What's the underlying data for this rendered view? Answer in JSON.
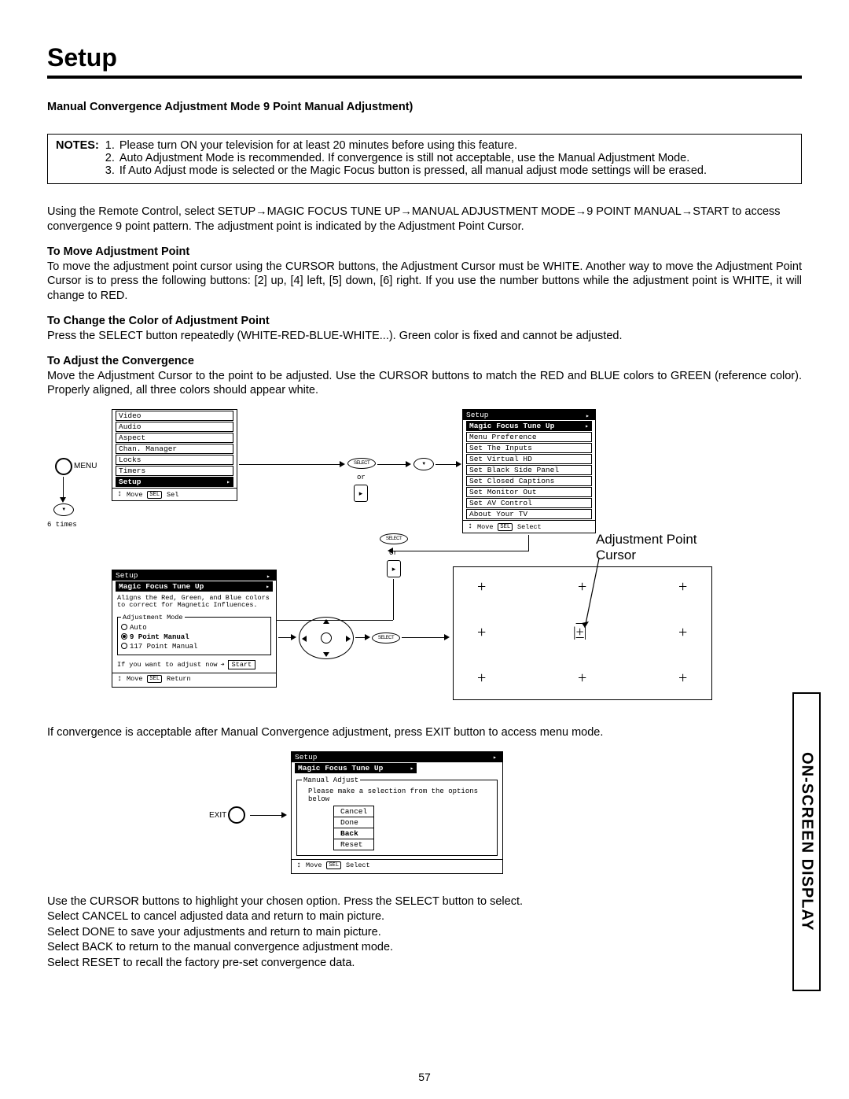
{
  "title": "Setup",
  "subtitle": "Manual Convergence Adjustment Mode 9 Point Manual Adjustment)",
  "notes_label": "NOTES:",
  "notes": [
    "Please turn ON your television for at least 20 minutes before using this feature.",
    "Auto Adjustment Mode is recommended.  If convergence is still not acceptable, use the Manual Adjustment Mode.",
    "If Auto Adjust mode is selected or the Magic Focus button is pressed, all manual adjust mode settings will be erased."
  ],
  "intro": "Using the Remote Control, select SETUP→MAGIC FOCUS TUNE UP→MANUAL ADJUSTMENT MODE→9 POINT MANUAL→START to access convergence 9 point  pattern.  The adjustment point is indicated by the Adjustment Point Cursor.",
  "s1_h": "To Move Adjustment Point",
  "s1_b": "To move the adjustment point cursor using the CURSOR buttons, the Adjustment Cursor must be WHITE.  Another way to move the Adjustment Point Cursor is to press the following buttons:  [2] up, [4] left, [5] down, [6] right.  If you use the number buttons while the adjustment point is WHITE, it will change to RED.",
  "s2_h": "To Change the Color of Adjustment Point",
  "s2_b": "Press the SELECT button repeatedly (WHITE-RED-BLUE-WHITE...).  Green color is fixed and cannot be adjusted.",
  "s3_h": "To Adjust the Convergence",
  "s3_b": "Move the Adjustment Cursor to the point to be adjusted.  Use the CURSOR buttons to match the RED and BLUE colors to GREEN (reference color).  Properly aligned, all three colors should appear white.",
  "after_diag": "If convergence is acceptable after Manual Convergence adjustment, press EXIT button to access menu mode.",
  "instr": [
    "Use the CURSOR buttons to highlight your chosen option.  Press the SELECT button to select.",
    "Select CANCEL to cancel adjusted data and return to main picture.",
    "Select DONE to save your adjustments and return to main picture.",
    "Select BACK to return to the manual convergence adjustment mode.",
    "Select RESET to recall the factory pre-set convergence data."
  ],
  "side_tab": "ON-SCREEN DISPLAY",
  "pagenum": "57",
  "adj_label1": "Adjustment Point",
  "adj_label2": "Cursor",
  "menu1": {
    "items": [
      "Video",
      "Audio",
      "Aspect",
      "Chan. Manager",
      "Locks",
      "Timers",
      "Setup"
    ],
    "hl": 6,
    "footer": "Move",
    "sel": "Sel"
  },
  "menu2": {
    "title": "Setup",
    "items": [
      "Magic Focus Tune Up",
      "Menu Preference",
      "Set The Inputs",
      "Set Virtual HD",
      "Set Black Side Panel",
      "Set Closed Captions",
      "Set Monitor Out",
      "Set AV Control",
      "About Your TV"
    ],
    "hl": 0,
    "footer": "Move",
    "sel": "Select"
  },
  "menu3": {
    "title": "Setup",
    "sub": "Magic Focus Tune Up",
    "desc": "Aligns the Red, Green, and Blue colors to correct for Magnetic Influences.",
    "legend": "Adjustment Mode",
    "opts": [
      "Auto",
      "9 Point Manual",
      "117 Point Manual"
    ],
    "opt_on": 1,
    "start_txt": "If you want to adjust now",
    "start": "Start",
    "footer": "Move",
    "sel": "Return"
  },
  "menu4": {
    "title": "Setup",
    "sub": "Magic Focus Tune Up",
    "legend": "Manual Adjust",
    "prompt": "Please make a selection from the options below",
    "opts": [
      "Cancel",
      "Done",
      "Back",
      "Reset"
    ],
    "opt_hl": 2,
    "footer": "Move",
    "sel": "Select"
  },
  "labels": {
    "menu": "MENU",
    "sixtimes": "6 times",
    "select": "SELECT",
    "or": "or",
    "exit": "EXIT"
  }
}
